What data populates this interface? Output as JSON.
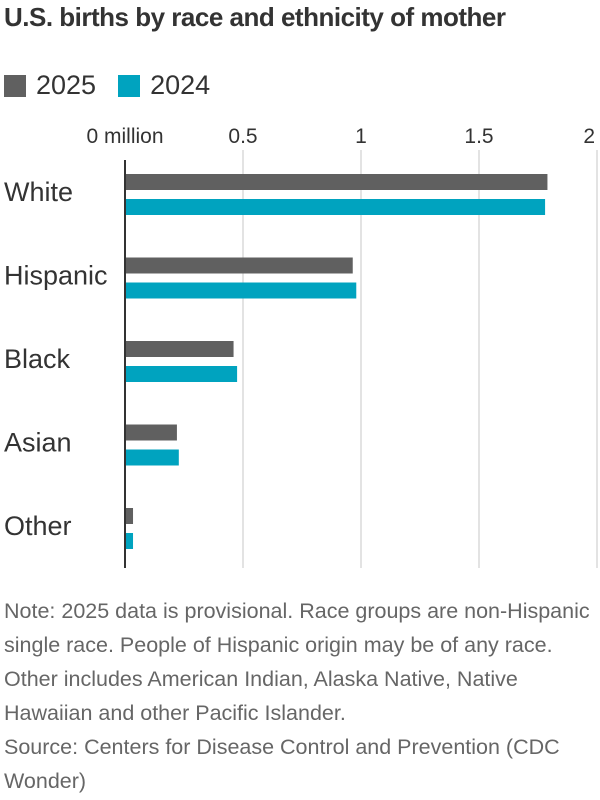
{
  "chart_data": {
    "type": "bar",
    "orientation": "horizontal",
    "title": "U.S. births by race and ethnicity of mother",
    "xlabel": "",
    "ylabel": "",
    "xlim": [
      0,
      2
    ],
    "x_ticks": [
      0,
      0.5,
      1,
      1.5,
      2
    ],
    "x_tick_labels": [
      "0 million",
      "0.5",
      "1",
      "1.5",
      "2"
    ],
    "grid": true,
    "legend_position": "top-left",
    "categories": [
      "White",
      "Hispanic",
      "Black",
      "Asian",
      "Other"
    ],
    "series": [
      {
        "name": "2025",
        "color": "#606060",
        "values": [
          1.79,
          0.965,
          0.46,
          0.22,
          0.034
        ]
      },
      {
        "name": "2024",
        "color": "#00a3bf",
        "values": [
          1.78,
          0.98,
          0.475,
          0.228,
          0.034
        ]
      }
    ]
  },
  "notes": {
    "note": "Note: 2025 data is provisional. Race groups are non-Hispanic single race. People of Hispanic origin may be of any race. Other includes American Indian, Alaska Native, Native Hawaiian and other Pacific Islander.",
    "source": "Source: Centers for Disease Control and Prevention (CDC Wonder)"
  }
}
